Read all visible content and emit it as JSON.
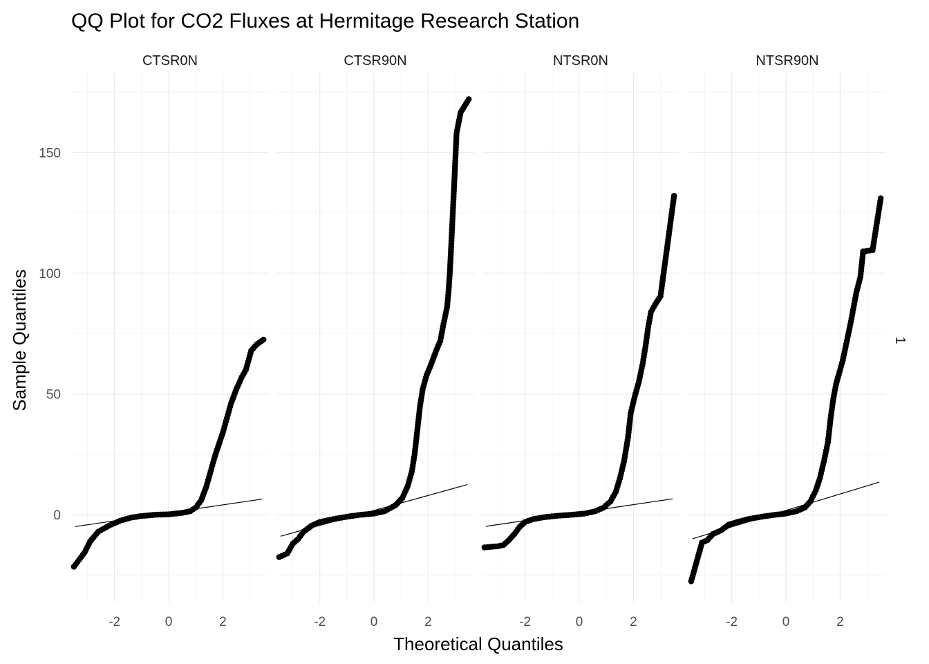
{
  "chart_data": {
    "type": "scatter",
    "title": "QQ Plot for CO2 Fluxes at Hermitage Research Station",
    "xlabel": "Theoretical Quantiles",
    "ylabel": "Sample Quantiles",
    "row_strip_label": "1",
    "xlim": [
      -3.6,
      3.7
    ],
    "ylim": [
      -36,
      183
    ],
    "x_ticks": [
      -2,
      0,
      2
    ],
    "y_ticks": [
      0,
      50,
      100,
      150
    ],
    "grid": true,
    "legend": "none",
    "panels": [
      {
        "name": "CTSR0N",
        "x_tick_labels": [
          "-2",
          "0",
          "2"
        ],
        "ref_line": {
          "slope": 1.65,
          "intercept": 0.8
        },
        "curve": [
          [
            -3.5,
            -21.5
          ],
          [
            -3.3,
            -18.5
          ],
          [
            -3.1,
            -15.5
          ],
          [
            -2.9,
            -11
          ],
          [
            -2.6,
            -7
          ],
          [
            -2.2,
            -4.5
          ],
          [
            -1.8,
            -2.5
          ],
          [
            -1.4,
            -1.2
          ],
          [
            -1.0,
            -0.5
          ],
          [
            -0.5,
            0
          ],
          [
            0,
            0.2
          ],
          [
            0.5,
            0.8
          ],
          [
            0.8,
            1.5
          ],
          [
            1.0,
            3
          ],
          [
            1.2,
            6
          ],
          [
            1.4,
            12
          ],
          [
            1.55,
            18
          ],
          [
            1.7,
            24
          ],
          [
            1.85,
            29
          ],
          [
            2.0,
            34
          ],
          [
            2.15,
            40
          ],
          [
            2.3,
            46
          ],
          [
            2.5,
            52
          ],
          [
            2.7,
            57
          ],
          [
            2.85,
            60
          ],
          [
            3.05,
            68
          ],
          [
            3.25,
            70.5
          ],
          [
            3.5,
            72.5
          ]
        ]
      },
      {
        "name": "CTSR90N",
        "x_tick_labels": [
          "-2",
          "0",
          "2"
        ],
        "ref_line": {
          "slope": 3.1,
          "intercept": 1.8
        },
        "curve": [
          [
            -3.5,
            -17.5
          ],
          [
            -3.2,
            -16
          ],
          [
            -3.0,
            -12
          ],
          [
            -2.8,
            -10
          ],
          [
            -2.6,
            -7
          ],
          [
            -2.3,
            -4.5
          ],
          [
            -2.0,
            -3
          ],
          [
            -1.5,
            -1.8
          ],
          [
            -1.0,
            -0.8
          ],
          [
            -0.5,
            0
          ],
          [
            0,
            0.5
          ],
          [
            0.4,
            1.5
          ],
          [
            0.8,
            4
          ],
          [
            1.05,
            7
          ],
          [
            1.25,
            12
          ],
          [
            1.4,
            18
          ],
          [
            1.5,
            25
          ],
          [
            1.6,
            35
          ],
          [
            1.7,
            45
          ],
          [
            1.8,
            52
          ],
          [
            1.95,
            58
          ],
          [
            2.1,
            62
          ],
          [
            2.3,
            68
          ],
          [
            2.45,
            72
          ],
          [
            2.55,
            78
          ],
          [
            2.7,
            86
          ],
          [
            2.75,
            92
          ],
          [
            2.8,
            100
          ],
          [
            2.85,
            111
          ],
          [
            2.95,
            134
          ],
          [
            3.05,
            158
          ],
          [
            3.2,
            166.5
          ],
          [
            3.5,
            172
          ]
        ]
      },
      {
        "name": "NTSR0N",
        "x_tick_labels": [
          "-2",
          "0",
          "2"
        ],
        "ref_line": {
          "slope": 1.65,
          "intercept": 0.9
        },
        "curve": [
          [
            -3.5,
            -13.5
          ],
          [
            -3.2,
            -13.2
          ],
          [
            -3.0,
            -13
          ],
          [
            -2.8,
            -12.5
          ],
          [
            -2.6,
            -10.5
          ],
          [
            -2.4,
            -8
          ],
          [
            -2.2,
            -5
          ],
          [
            -2.0,
            -3
          ],
          [
            -1.7,
            -1.8
          ],
          [
            -1.3,
            -1
          ],
          [
            -0.8,
            -0.4
          ],
          [
            -0.3,
            0
          ],
          [
            0.2,
            0.5
          ],
          [
            0.6,
            1.5
          ],
          [
            0.9,
            3
          ],
          [
            1.15,
            5.5
          ],
          [
            1.35,
            9.5
          ],
          [
            1.5,
            15
          ],
          [
            1.65,
            22
          ],
          [
            1.8,
            32
          ],
          [
            1.9,
            42
          ],
          [
            2.05,
            49
          ],
          [
            2.2,
            55
          ],
          [
            2.35,
            63
          ],
          [
            2.45,
            70
          ],
          [
            2.55,
            78
          ],
          [
            2.65,
            84
          ],
          [
            2.8,
            87
          ],
          [
            3.0,
            90.5
          ],
          [
            3.2,
            107
          ],
          [
            3.5,
            132
          ]
        ]
      },
      {
        "name": "NTSR90N",
        "x_tick_labels": [
          "-2",
          "0",
          "2"
        ],
        "ref_line": {
          "slope": 3.4,
          "intercept": 1.8
        },
        "curve": [
          [
            -3.5,
            -27.5
          ],
          [
            -3.1,
            -11.5
          ],
          [
            -2.9,
            -10.5
          ],
          [
            -2.7,
            -8
          ],
          [
            -2.4,
            -6.5
          ],
          [
            -2.1,
            -4
          ],
          [
            -1.8,
            -3
          ],
          [
            -1.4,
            -1.8
          ],
          [
            -0.9,
            -0.8
          ],
          [
            -0.4,
            0
          ],
          [
            0,
            0.5
          ],
          [
            0.4,
            1.5
          ],
          [
            0.7,
            3
          ],
          [
            0.9,
            5.5
          ],
          [
            1.1,
            10
          ],
          [
            1.25,
            15
          ],
          [
            1.4,
            22
          ],
          [
            1.55,
            30
          ],
          [
            1.65,
            40
          ],
          [
            1.75,
            48
          ],
          [
            1.85,
            54
          ],
          [
            1.95,
            58
          ],
          [
            2.1,
            64
          ],
          [
            2.25,
            72
          ],
          [
            2.4,
            80
          ],
          [
            2.5,
            86
          ],
          [
            2.6,
            92
          ],
          [
            2.75,
            98.5
          ],
          [
            2.85,
            109
          ],
          [
            3.2,
            109.5
          ],
          [
            3.5,
            131
          ]
        ]
      }
    ]
  }
}
